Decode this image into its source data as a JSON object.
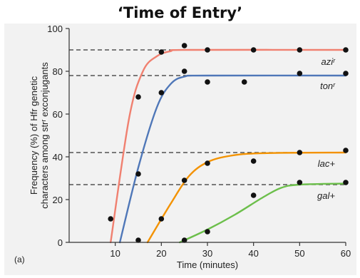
{
  "slide_title": "‘Time of Entry’",
  "chart_data": {
    "type": "line",
    "panel_label": "(a)",
    "xlabel": "Time (minutes)",
    "ylabel_line1": "Frequency (%) of Hfr genetic",
    "ylabel_line2": "characters among strʳ exconjugants",
    "xlim": [
      0,
      60
    ],
    "ylim": [
      0,
      100
    ],
    "xticks": [
      10,
      20,
      30,
      40,
      50,
      60
    ],
    "yticks": [
      0,
      20,
      40,
      60,
      80,
      100
    ],
    "grid": false,
    "series": [
      {
        "name": "aziʳ",
        "color": "#f08070",
        "plateau": 90,
        "curve": [
          [
            9,
            0
          ],
          [
            13,
            58
          ],
          [
            16,
            80
          ],
          [
            19,
            87
          ],
          [
            22,
            89.4
          ],
          [
            26,
            90
          ],
          [
            60,
            90
          ]
        ],
        "points": [
          [
            9,
            11
          ],
          [
            15,
            68
          ],
          [
            20,
            89
          ],
          [
            25,
            92
          ],
          [
            30,
            90
          ],
          [
            40,
            90
          ],
          [
            50,
            90
          ],
          [
            60,
            90
          ]
        ]
      },
      {
        "name": "tonʳ",
        "color": "#4f77b8",
        "plateau": 78,
        "curve": [
          [
            11,
            0
          ],
          [
            15,
            35
          ],
          [
            19,
            63
          ],
          [
            22,
            74
          ],
          [
            25,
            77.5
          ],
          [
            30,
            78
          ],
          [
            60,
            78
          ]
        ],
        "points": [
          [
            15,
            32
          ],
          [
            20,
            70
          ],
          [
            25,
            80
          ],
          [
            30,
            75
          ],
          [
            38,
            75
          ],
          [
            50,
            79
          ],
          [
            60,
            79
          ]
        ]
      },
      {
        "name": "lac+",
        "color": "#f39200",
        "plateau": 42,
        "curve": [
          [
            17,
            0
          ],
          [
            22,
            18
          ],
          [
            26,
            31
          ],
          [
            30,
            37.5
          ],
          [
            35,
            40.5
          ],
          [
            42,
            41.7
          ],
          [
            60,
            42
          ]
        ],
        "points": [
          [
            15,
            1
          ],
          [
            20,
            11
          ],
          [
            25,
            29
          ],
          [
            30,
            37
          ],
          [
            40,
            38
          ],
          [
            50,
            42
          ],
          [
            60,
            43
          ]
        ]
      },
      {
        "name": "gal+",
        "color": "#6cbf4b",
        "plateau": 27,
        "curve": [
          [
            24,
            0
          ],
          [
            30,
            6
          ],
          [
            36,
            13
          ],
          [
            42,
            21
          ],
          [
            46,
            25.5
          ],
          [
            50,
            27
          ],
          [
            60,
            27.5
          ]
        ],
        "points": [
          [
            25,
            1
          ],
          [
            30,
            5
          ],
          [
            40,
            22
          ],
          [
            50,
            28
          ],
          [
            60,
            28
          ]
        ]
      }
    ]
  }
}
